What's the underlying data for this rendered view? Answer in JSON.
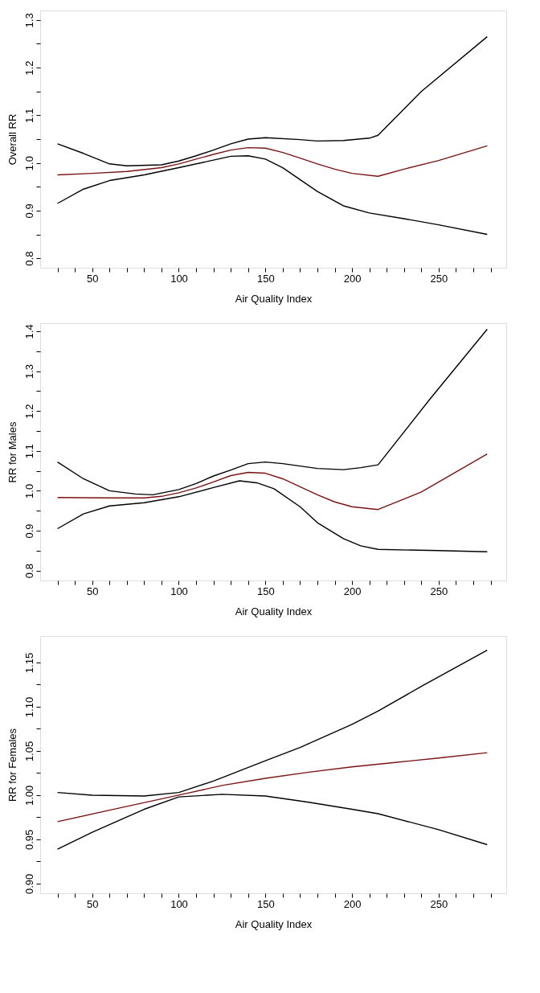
{
  "chart_data": [
    {
      "type": "line",
      "xlabel": "Air Quality Index",
      "ylabel": "Overall RR",
      "xlim": [
        20,
        289
      ],
      "ylim": [
        0.78,
        1.32
      ],
      "xticks": [
        {
          "value": 30,
          "label": null
        },
        {
          "value": 40,
          "label": null
        },
        50,
        {
          "value": 60,
          "label": null
        },
        {
          "value": 70,
          "label": null
        },
        {
          "value": 80,
          "label": null
        },
        {
          "value": 90,
          "label": null
        },
        100,
        {
          "value": 110,
          "label": null
        },
        {
          "value": 120,
          "label": null
        },
        {
          "value": 130,
          "label": null
        },
        {
          "value": 140,
          "label": null
        },
        150,
        {
          "value": 160,
          "label": null
        },
        {
          "value": 170,
          "label": null
        },
        {
          "value": 180,
          "label": null
        },
        {
          "value": 190,
          "label": null
        },
        200,
        {
          "value": 210,
          "label": null
        },
        {
          "value": 220,
          "label": null
        },
        {
          "value": 230,
          "label": null
        },
        {
          "value": 240,
          "label": null
        },
        250,
        {
          "value": 260,
          "label": null
        },
        {
          "value": 270,
          "label": null
        },
        {
          "value": 280,
          "label": null
        }
      ],
      "yticks": [
        {
          "value": 0.8,
          "label": "0.8"
        },
        {
          "value": 0.85,
          "label": null
        },
        {
          "value": 0.9,
          "label": "0.9"
        },
        {
          "value": 0.95,
          "label": null
        },
        {
          "value": 1.0,
          "label": "1.0"
        },
        {
          "value": 1.05,
          "label": null
        },
        {
          "value": 1.1,
          "label": "1.1"
        },
        {
          "value": 1.15,
          "label": null
        },
        {
          "value": 1.2,
          "label": "1.2"
        },
        {
          "value": 1.25,
          "label": null
        },
        {
          "value": 1.3,
          "label": "1.3"
        }
      ],
      "series": [
        {
          "color": "#000000",
          "x": [
            30,
            45,
            60,
            70,
            90,
            100,
            110,
            120,
            130,
            140,
            150,
            170,
            180,
            195,
            210,
            215,
            240,
            278
          ],
          "values": [
            1.04,
            1.02,
            0.998,
            0.994,
            0.996,
            1.004,
            1.015,
            1.027,
            1.04,
            1.05,
            1.053,
            1.049,
            1.046,
            1.047,
            1.052,
            1.058,
            1.15,
            1.265
          ]
        },
        {
          "color": "#000000",
          "x": [
            30,
            45,
            60,
            80,
            100,
            120,
            130,
            140,
            150,
            160,
            170,
            180,
            195,
            210,
            230,
            250,
            278
          ],
          "values": [
            0.915,
            0.945,
            0.963,
            0.975,
            0.99,
            1.006,
            1.014,
            1.015,
            1.008,
            0.99,
            0.965,
            0.94,
            0.91,
            0.895,
            0.883,
            0.87,
            0.85
          ]
        },
        {
          "color": "#7a1414",
          "x": [
            30,
            50,
            70,
            90,
            100,
            110,
            120,
            130,
            140,
            150,
            160,
            170,
            180,
            190,
            200,
            215,
            230,
            250,
            278
          ],
          "values": [
            0.975,
            0.978,
            0.982,
            0.99,
            0.998,
            1.008,
            1.018,
            1.027,
            1.032,
            1.031,
            1.022,
            1.01,
            0.998,
            0.987,
            0.978,
            0.972,
            0.987,
            1.005,
            1.036
          ]
        }
      ]
    },
    {
      "type": "line",
      "xlabel": "Air Quality Index",
      "ylabel": "RR for Males",
      "xlim": [
        20,
        289
      ],
      "ylim": [
        0.775,
        1.42
      ],
      "xticks": [
        {
          "value": 30,
          "label": null
        },
        {
          "value": 40,
          "label": null
        },
        50,
        {
          "value": 60,
          "label": null
        },
        {
          "value": 70,
          "label": null
        },
        {
          "value": 80,
          "label": null
        },
        {
          "value": 90,
          "label": null
        },
        100,
        {
          "value": 110,
          "label": null
        },
        {
          "value": 120,
          "label": null
        },
        {
          "value": 130,
          "label": null
        },
        {
          "value": 140,
          "label": null
        },
        150,
        {
          "value": 160,
          "label": null
        },
        {
          "value": 170,
          "label": null
        },
        {
          "value": 180,
          "label": null
        },
        {
          "value": 190,
          "label": null
        },
        200,
        {
          "value": 210,
          "label": null
        },
        {
          "value": 220,
          "label": null
        },
        {
          "value": 230,
          "label": null
        },
        {
          "value": 240,
          "label": null
        },
        250,
        {
          "value": 260,
          "label": null
        },
        {
          "value": 270,
          "label": null
        },
        {
          "value": 280,
          "label": null
        }
      ],
      "yticks": [
        {
          "value": 0.8,
          "label": "0.8"
        },
        {
          "value": 0.85,
          "label": null
        },
        {
          "value": 0.9,
          "label": "0.9"
        },
        {
          "value": 0.95,
          "label": null
        },
        {
          "value": 1.0,
          "label": "1.0"
        },
        {
          "value": 1.05,
          "label": null
        },
        {
          "value": 1.1,
          "label": "1.1"
        },
        {
          "value": 1.15,
          "label": null
        },
        {
          "value": 1.2,
          "label": "1.2"
        },
        {
          "value": 1.25,
          "label": null
        },
        {
          "value": 1.3,
          "label": "1.3"
        },
        {
          "value": 1.35,
          "label": null
        },
        {
          "value": 1.4,
          "label": "1.4"
        }
      ],
      "series": [
        {
          "color": "#000000",
          "x": [
            30,
            45,
            60,
            75,
            85,
            100,
            110,
            120,
            130,
            140,
            150,
            160,
            180,
            195,
            205,
            215,
            245,
            278
          ],
          "values": [
            1.072,
            1.03,
            1.0,
            0.992,
            0.99,
            1.003,
            1.018,
            1.037,
            1.052,
            1.068,
            1.072,
            1.068,
            1.056,
            1.053,
            1.058,
            1.065,
            1.23,
            1.405
          ]
        },
        {
          "color": "#000000",
          "x": [
            30,
            45,
            60,
            80,
            100,
            120,
            135,
            145,
            155,
            170,
            180,
            195,
            205,
            215,
            250,
            278
          ],
          "values": [
            0.905,
            0.942,
            0.962,
            0.97,
            0.985,
            1.008,
            1.025,
            1.02,
            1.005,
            0.96,
            0.92,
            0.88,
            0.862,
            0.853,
            0.85,
            0.847
          ]
        },
        {
          "color": "#7a1414",
          "x": [
            30,
            60,
            80,
            90,
            100,
            110,
            120,
            130,
            140,
            150,
            160,
            170,
            180,
            190,
            200,
            215,
            240,
            278
          ],
          "values": [
            0.983,
            0.982,
            0.982,
            0.986,
            0.995,
            1.007,
            1.022,
            1.038,
            1.046,
            1.044,
            1.03,
            1.01,
            0.99,
            0.972,
            0.96,
            0.953,
            0.997,
            1.092
          ]
        }
      ]
    },
    {
      "type": "line",
      "xlabel": "Air Quality Index",
      "ylabel": "RR for Females",
      "xlim": [
        20,
        289
      ],
      "ylim": [
        0.889,
        1.18
      ],
      "xticks": [
        {
          "value": 30,
          "label": null
        },
        {
          "value": 40,
          "label": null
        },
        50,
        {
          "value": 60,
          "label": null
        },
        {
          "value": 70,
          "label": null
        },
        {
          "value": 80,
          "label": null
        },
        {
          "value": 90,
          "label": null
        },
        100,
        {
          "value": 110,
          "label": null
        },
        {
          "value": 120,
          "label": null
        },
        {
          "value": 130,
          "label": null
        },
        {
          "value": 140,
          "label": null
        },
        150,
        {
          "value": 160,
          "label": null
        },
        {
          "value": 170,
          "label": null
        },
        {
          "value": 180,
          "label": null
        },
        {
          "value": 190,
          "label": null
        },
        200,
        {
          "value": 210,
          "label": null
        },
        {
          "value": 220,
          "label": null
        },
        {
          "value": 230,
          "label": null
        },
        {
          "value": 240,
          "label": null
        },
        250,
        {
          "value": 260,
          "label": null
        },
        {
          "value": 270,
          "label": null
        },
        {
          "value": 280,
          "label": null
        }
      ],
      "yticks": [
        {
          "value": 0.9,
          "label": "0.90"
        },
        {
          "value": 0.925,
          "label": null
        },
        {
          "value": 0.95,
          "label": "0.95"
        },
        {
          "value": 0.975,
          "label": null
        },
        {
          "value": 1.0,
          "label": "1.00"
        },
        {
          "value": 1.025,
          "label": null
        },
        {
          "value": 1.05,
          "label": "1.05"
        },
        {
          "value": 1.075,
          "label": null
        },
        {
          "value": 1.1,
          "label": "1.10"
        },
        {
          "value": 1.125,
          "label": null
        },
        {
          "value": 1.15,
          "label": "1.15"
        }
      ],
      "series": [
        {
          "color": "#000000",
          "x": [
            30,
            50,
            80,
            100,
            120,
            150,
            170,
            200,
            215,
            240,
            278
          ],
          "values": [
            1.003,
            1.0,
            0.999,
            1.003,
            1.016,
            1.039,
            1.054,
            1.08,
            1.095,
            1.123,
            1.164
          ]
        },
        {
          "color": "#000000",
          "x": [
            30,
            50,
            80,
            100,
            125,
            150,
            175,
            200,
            215,
            250,
            278
          ],
          "values": [
            0.939,
            0.958,
            0.984,
            0.998,
            1.001,
            0.999,
            0.992,
            0.984,
            0.979,
            0.961,
            0.944
          ]
        },
        {
          "color": "#7a1414",
          "x": [
            30,
            60,
            100,
            125,
            150,
            175,
            200,
            225,
            250,
            278
          ],
          "values": [
            0.97,
            0.983,
            1.0,
            1.011,
            1.019,
            1.026,
            1.032,
            1.037,
            1.042,
            1.048
          ]
        }
      ]
    }
  ]
}
